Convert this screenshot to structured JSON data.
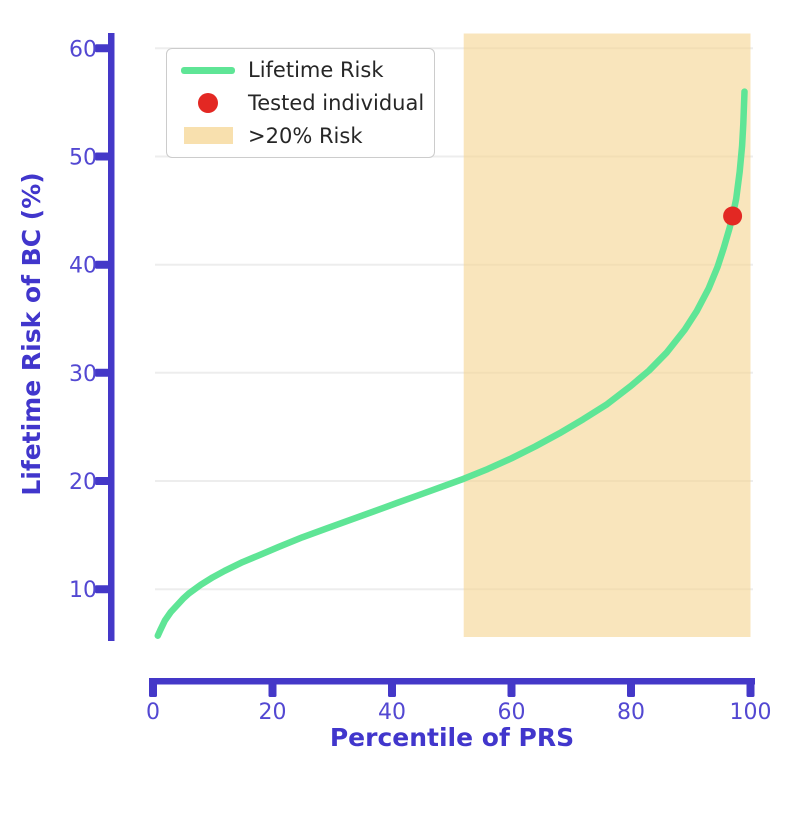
{
  "chart_data": {
    "type": "line",
    "title": "",
    "xlabel": "Percentile of PRS",
    "ylabel": "Lifetime Risk of BC (%)",
    "xlim": [
      0,
      100
    ],
    "ylim": [
      5.5,
      61.5
    ],
    "xticks": [
      0,
      20,
      40,
      60,
      80,
      100
    ],
    "yticks": [
      10,
      20,
      30,
      40,
      50,
      60
    ],
    "grid": "horizontal",
    "legend_position": "upper-left",
    "series": [
      {
        "name": "Lifetime Risk",
        "type": "line",
        "color": "#5fe596",
        "points": [
          [
            0.8,
            5.7
          ],
          [
            1.2,
            6.2
          ],
          [
            2,
            7.1
          ],
          [
            3,
            7.9
          ],
          [
            4,
            8.5
          ],
          [
            5,
            9.1
          ],
          [
            6,
            9.6
          ],
          [
            8,
            10.4
          ],
          [
            10,
            11.1
          ],
          [
            12,
            11.7
          ],
          [
            15,
            12.5
          ],
          [
            18,
            13.2
          ],
          [
            21,
            13.9
          ],
          [
            25,
            14.8
          ],
          [
            29,
            15.6
          ],
          [
            33,
            16.4
          ],
          [
            37,
            17.2
          ],
          [
            41,
            18.0
          ],
          [
            45,
            18.8
          ],
          [
            49,
            19.6
          ],
          [
            52,
            20.2
          ],
          [
            56,
            21.1
          ],
          [
            60,
            22.1
          ],
          [
            64,
            23.2
          ],
          [
            68,
            24.4
          ],
          [
            72,
            25.7
          ],
          [
            76,
            27.1
          ],
          [
            80,
            28.8
          ],
          [
            83,
            30.2
          ],
          [
            86,
            31.9
          ],
          [
            89,
            34.0
          ],
          [
            91,
            35.7
          ],
          [
            93,
            37.8
          ],
          [
            94.5,
            39.8
          ],
          [
            95.5,
            41.5
          ],
          [
            96.5,
            43.4
          ],
          [
            97,
            44.5
          ],
          [
            97.6,
            46.1
          ],
          [
            98.2,
            48.6
          ],
          [
            98.6,
            51.0
          ],
          [
            98.8,
            53.0
          ],
          [
            99,
            56.0
          ]
        ]
      },
      {
        "name": "Tested individual",
        "type": "scatter",
        "color": "#e32823",
        "points": [
          [
            97,
            44.5
          ]
        ]
      },
      {
        "name": ">20% Risk",
        "type": "region",
        "color": "#f5d593",
        "x_range": [
          52,
          100
        ],
        "threshold_percent": 20
      }
    ],
    "colors": {
      "axis_spine": "#4438c8",
      "tick_label": "#5348d2",
      "axis_label": "#4136cc",
      "grid": "#ededed",
      "legend_border": "#cccccc",
      "legend_text": "#262626",
      "background": "#ffffff"
    }
  }
}
